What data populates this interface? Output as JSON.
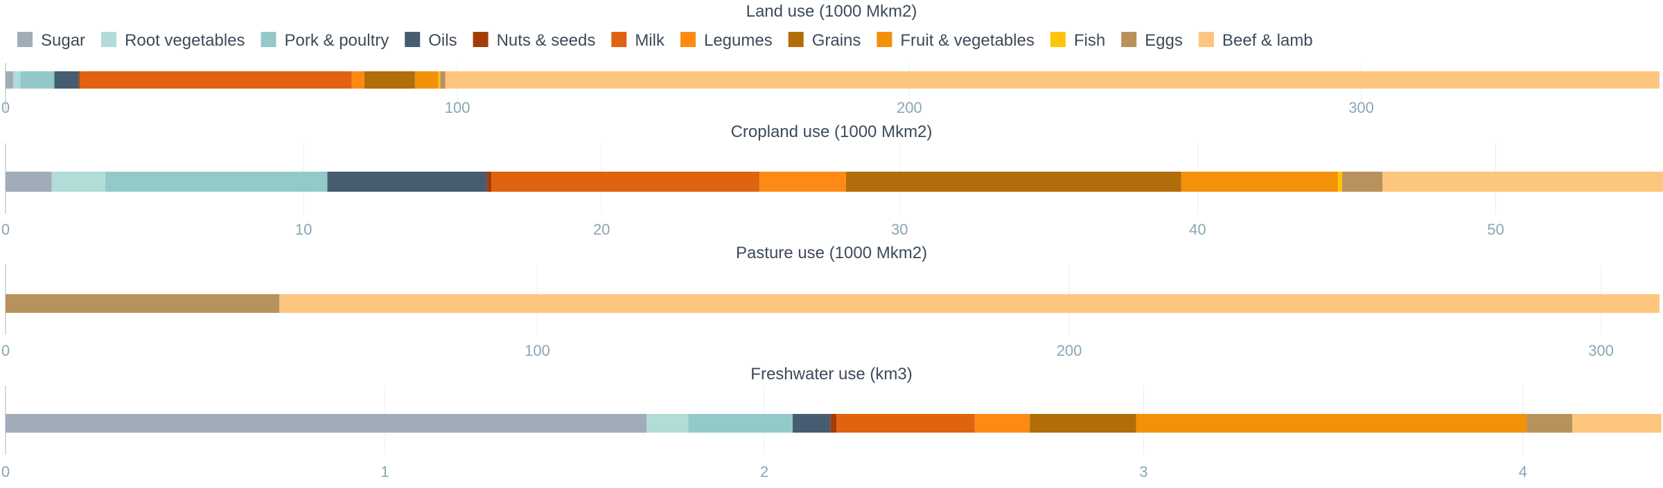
{
  "chart_data": {
    "type": "bar",
    "orientation": "horizontal-stacked",
    "legend": {
      "position": "top",
      "items": [
        {
          "name": "Sugar",
          "color": "#a0acb8"
        },
        {
          "name": "Root vegetables",
          "color": "#b1dcd8"
        },
        {
          "name": "Pork & poultry",
          "color": "#94c9c9"
        },
        {
          "name": "Oils",
          "color": "#465c70"
        },
        {
          "name": "Nuts & seeds",
          "color": "#a23d08"
        },
        {
          "name": "Milk",
          "color": "#e0630f"
        },
        {
          "name": "Legumes",
          "color": "#fd8a15"
        },
        {
          "name": "Grains",
          "color": "#b16d09"
        },
        {
          "name": "Fruit & vegetables",
          "color": "#f39109"
        },
        {
          "name": "Fish",
          "color": "#ffc50a"
        },
        {
          "name": "Eggs",
          "color": "#b8925c"
        },
        {
          "name": "Beef & lamb",
          "color": "#fdc67f"
        }
      ]
    },
    "panels": [
      {
        "title": "Land use (1000 Mkm2)",
        "xlim": [
          0,
          366
        ],
        "ticks": [
          0,
          100,
          200,
          300
        ],
        "tick_labels": [
          "0",
          "100",
          "200",
          "300"
        ],
        "values": [
          1.7,
          1.6,
          7.5,
          5.4,
          0.2,
          60.2,
          2.8,
          11.2,
          5.2,
          0.4,
          1.1,
          268.7
        ]
      },
      {
        "title": "Cropland use (1000 Mkm2)",
        "xlim": [
          0,
          55.5
        ],
        "ticks": [
          0,
          10,
          20,
          30,
          40,
          50
        ],
        "tick_labels": [
          "0",
          "10",
          "20",
          "30",
          "40",
          "50"
        ],
        "values": [
          1.55,
          1.8,
          7.45,
          5.35,
          0.15,
          9.0,
          2.9,
          11.25,
          5.25,
          0.15,
          1.35,
          9.6
        ]
      },
      {
        "title": "Pasture use (1000 Mkm2)",
        "xlim": [
          0,
          311
        ],
        "ticks": [
          0,
          100,
          200,
          300
        ],
        "tick_labels": [
          "0",
          "100",
          "200",
          "300"
        ],
        "values": [
          0,
          0,
          0,
          0,
          0,
          0,
          0,
          0,
          0,
          0,
          51.5,
          259.5
        ]
      },
      {
        "title": "Freshwater use (km3)",
        "xlim": [
          0,
          4.36
        ],
        "ticks": [
          0,
          1,
          2,
          3,
          4
        ],
        "tick_labels": [
          "0",
          "1",
          "2",
          "3",
          "4"
        ],
        "values": [
          1.69,
          0.11,
          0.275,
          0.1,
          0.015,
          0.365,
          0.145,
          0.28,
          1.03,
          0.0,
          0.12,
          0.235
        ]
      }
    ],
    "grid": true
  }
}
